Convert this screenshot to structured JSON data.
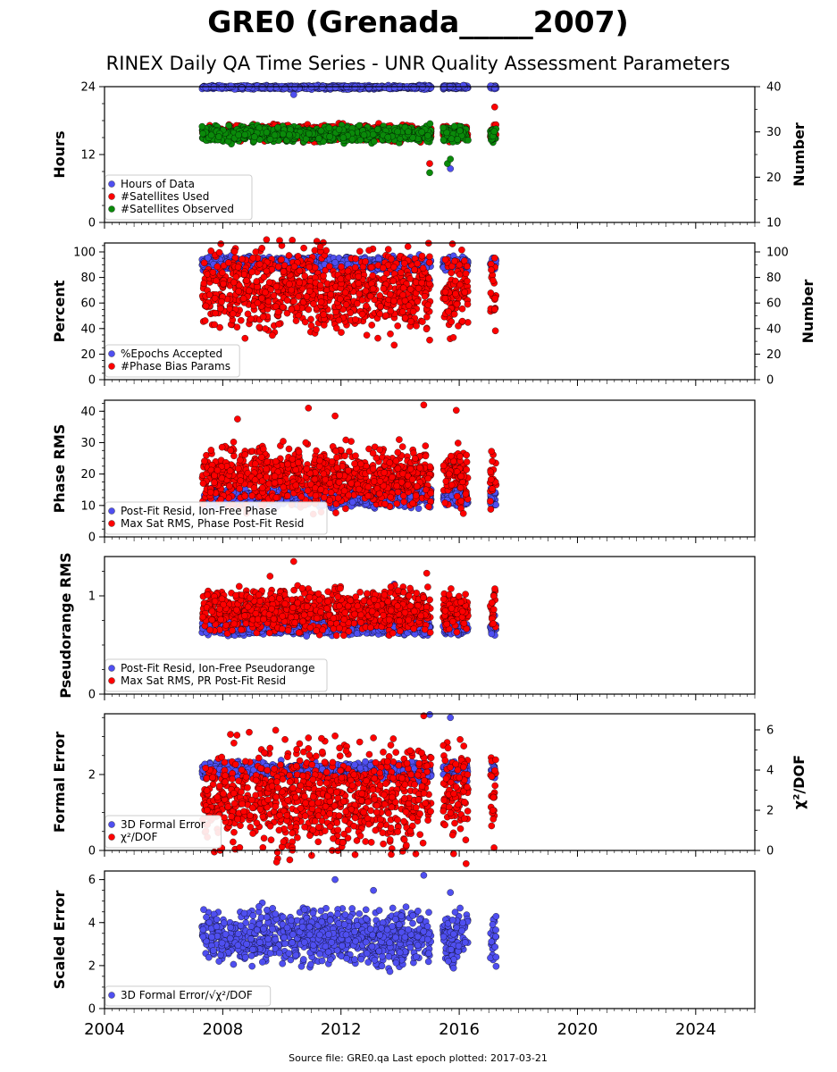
{
  "page": {
    "title": "GRE0 (Grenada_____2007)",
    "subtitle": "RINEX Daily QA Time Series - UNR Quality Assessment Parameters",
    "footer": "Source file: GRE0.qa Last epoch plotted: 2017-03-21"
  },
  "colors": {
    "blue": "#4f4ff0",
    "red": "#ff0000",
    "green": "#0a8a0a",
    "edge": "#000000"
  },
  "chart_data": [
    {
      "type": "scatter",
      "ylabel": "Hours",
      "ylim": [
        0,
        24
      ],
      "yticks": [
        0,
        12,
        24
      ],
      "ylabel_right": "Number",
      "ylim_right": [
        10,
        40
      ],
      "yticks_right": [
        10,
        20,
        30,
        40
      ],
      "xlim": [
        2004,
        2026
      ],
      "legend_position": "lower-left",
      "series": [
        {
          "name": "Hours of Data",
          "color": "blue",
          "axis": "left",
          "base": 23.9,
          "spread": 0.15,
          "low_outliers": [
            [
              2010.4,
              22.6
            ],
            [
              2015.7,
              9.5
            ],
            [
              2017.2,
              23.8
            ]
          ]
        },
        {
          "name": "#Satellites Used",
          "color": "red",
          "axis": "right",
          "base": 29.8,
          "spread": 0.8,
          "high_outliers": [
            [
              2017.2,
              35.5
            ]
          ],
          "low_outliers": [
            [
              2015.0,
              23.0
            ]
          ]
        },
        {
          "name": "#Satellites Observed",
          "color": "green",
          "axis": "right",
          "base": 29.5,
          "spread": 0.8,
          "low_outliers": [
            [
              2015.0,
              21.0
            ],
            [
              2015.6,
              23.0
            ],
            [
              2015.7,
              24.0
            ]
          ]
        }
      ]
    },
    {
      "type": "scatter",
      "ylabel": "Percent",
      "ylim": [
        0,
        107
      ],
      "yticks": [
        0,
        20,
        40,
        60,
        80,
        100
      ],
      "ylabel_right": "Number",
      "ylim_right": [
        0,
        107
      ],
      "yticks_right": [
        0,
        20,
        40,
        60,
        80,
        100
      ],
      "xlim": [
        2004,
        2026
      ],
      "legend_position": "lower-left",
      "series": [
        {
          "name": "%Epochs Accepted",
          "color": "blue",
          "axis": "left",
          "base": 91,
          "spread": 2.5,
          "low_outliers": [
            [
              2015.0,
              78
            ]
          ]
        },
        {
          "name": "#Phase Bias Params",
          "color": "red",
          "axis": "right",
          "base": 70,
          "spread": 15,
          "high_outliers": [
            [
              2010.0,
              105
            ],
            [
              2011.3,
              104
            ],
            [
              2013.6,
              102
            ]
          ],
          "low_outliers": [
            [
              2015.0,
              31
            ],
            [
              2015.8,
              33
            ]
          ]
        }
      ]
    },
    {
      "type": "scatter",
      "ylabel": "Phase RMS",
      "ylim": [
        0,
        43.5
      ],
      "yticks": [
        0,
        10,
        20,
        30,
        40
      ],
      "xlim": [
        2004,
        2026
      ],
      "legend_position": "lower-left",
      "series": [
        {
          "name": "Post-Fit Resid, Ion-Free Phase",
          "color": "blue",
          "axis": "left",
          "base": 12.5,
          "spread": 1.3
        },
        {
          "name": "Max Sat RMS, Phase Post-Fit Resid",
          "color": "red",
          "axis": "left",
          "base": 19,
          "spread": 4.5,
          "high_outliers": [
            [
              2008.5,
              37.5
            ],
            [
              2010.9,
              41
            ],
            [
              2011.8,
              38.5
            ],
            [
              2014.8,
              42
            ],
            [
              2015.9,
              40.3
            ]
          ]
        }
      ]
    },
    {
      "type": "scatter",
      "ylabel": "Pseudorange RMS",
      "ylim": [
        0,
        1.4
      ],
      "yticks": [
        0,
        1
      ],
      "xlim": [
        2004,
        2026
      ],
      "legend_position": "lower-left",
      "series": [
        {
          "name": "Post-Fit Resid, Ion-Free Pseudorange",
          "color": "blue",
          "axis": "left",
          "base": 0.67,
          "spread": 0.03,
          "high_outliers": [
            [
              2013.8,
              1.12
            ],
            [
              2017.2,
              0.8
            ]
          ]
        },
        {
          "name": "Max Sat RMS, PR Post-Fit Resid",
          "color": "red",
          "axis": "left",
          "base": 0.85,
          "spread": 0.1,
          "high_outliers": [
            [
              2010.4,
              1.35
            ],
            [
              2009.6,
              1.2
            ],
            [
              2014.9,
              1.23
            ]
          ]
        }
      ]
    },
    {
      "type": "scatter",
      "ylabel": "Formal Error",
      "ylim": [
        0,
        3.6
      ],
      "yticks": [
        0,
        2
      ],
      "ylabel_right": "χ²/DOF",
      "ylim_right": [
        0,
        6.8
      ],
      "yticks_right": [
        0,
        2,
        4,
        6
      ],
      "xlim": [
        2004,
        2026
      ],
      "legend_position": "lower-left",
      "series": [
        {
          "name": "3D Formal Error",
          "color": "blue",
          "axis": "left",
          "base": 2.1,
          "spread": 0.1,
          "high_outliers": [
            [
              2015.0,
              3.58
            ],
            [
              2015.7,
              3.5
            ],
            [
              2017.2,
              2.15
            ]
          ]
        },
        {
          "name": "χ²/DOF",
          "color": "red",
          "axis": "right",
          "base": 2.7,
          "spread": 1.2,
          "high_outliers": [
            [
              2010.9,
              5.6
            ],
            [
              2011.8,
              5.7
            ],
            [
              2014.8,
              6.7
            ],
            [
              2013.1,
              5.6
            ]
          ]
        }
      ]
    },
    {
      "type": "scatter",
      "ylabel": "Scaled Error",
      "ylim": [
        0,
        6.4
      ],
      "yticks": [
        0,
        2,
        4,
        6
      ],
      "xlim": [
        2004,
        2026
      ],
      "xticks": [
        2004,
        2008,
        2012,
        2016,
        2020,
        2024
      ],
      "legend_position": "lower-left",
      "series": [
        {
          "name": "3D Formal Error/√χ²/DOF",
          "color": "blue",
          "axis": "left",
          "base": 3.3,
          "spread": 0.6,
          "high_outliers": [
            [
              2011.8,
              6.0
            ],
            [
              2014.8,
              6.2
            ],
            [
              2013.1,
              5.5
            ],
            [
              2015.7,
              5.4
            ]
          ]
        }
      ]
    }
  ]
}
